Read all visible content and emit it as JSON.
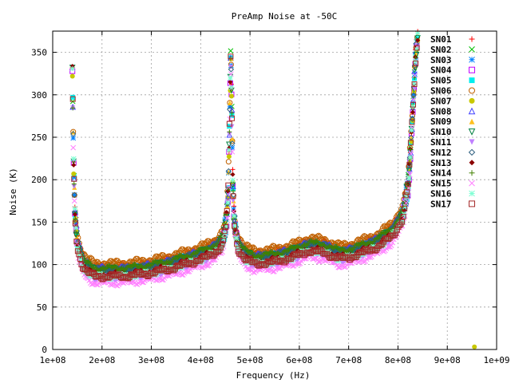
{
  "chart_data": {
    "type": "scatter",
    "title": "PreAmp Noise at -50C",
    "xlabel": "Frequency (Hz)",
    "ylabel": "Noise (K)",
    "xlim": [
      100000000,
      1000000000
    ],
    "ylim": [
      0,
      375
    ],
    "x_ticks": [
      {
        "value": 100000000,
        "label": "1e+08"
      },
      {
        "value": 200000000,
        "label": "2e+08"
      },
      {
        "value": 300000000,
        "label": "3e+08"
      },
      {
        "value": 400000000,
        "label": "4e+08"
      },
      {
        "value": 500000000,
        "label": "5e+08"
      },
      {
        "value": 600000000,
        "label": "6e+08"
      },
      {
        "value": 700000000,
        "label": "7e+08"
      },
      {
        "value": 800000000,
        "label": "8e+08"
      },
      {
        "value": 900000000,
        "label": "9e+08"
      },
      {
        "value": 1000000000,
        "label": "1e+09"
      }
    ],
    "y_ticks": [
      {
        "value": 0,
        "label": "0"
      },
      {
        "value": 50,
        "label": "50"
      },
      {
        "value": 100,
        "label": "100"
      },
      {
        "value": 150,
        "label": "150"
      },
      {
        "value": 200,
        "label": "200"
      },
      {
        "value": 250,
        "label": "250"
      },
      {
        "value": 300,
        "label": "300"
      },
      {
        "value": 350,
        "label": "350"
      }
    ],
    "grid": true,
    "legend_position": "top-right",
    "base_curve": [
      [
        140000000,
        330
      ],
      [
        142000000,
        230
      ],
      [
        145000000,
        160
      ],
      [
        150000000,
        125
      ],
      [
        160000000,
        105
      ],
      [
        170000000,
        97
      ],
      [
        185000000,
        92
      ],
      [
        200000000,
        92
      ],
      [
        230000000,
        92
      ],
      [
        260000000,
        93
      ],
      [
        300000000,
        96
      ],
      [
        340000000,
        101
      ],
      [
        380000000,
        108
      ],
      [
        410000000,
        114
      ],
      [
        430000000,
        120
      ],
      [
        445000000,
        130
      ],
      [
        452000000,
        150
      ],
      [
        456000000,
        190
      ],
      [
        459000000,
        280
      ],
      [
        461000000,
        350
      ],
      [
        463000000,
        290
      ],
      [
        465000000,
        200
      ],
      [
        468000000,
        150
      ],
      [
        475000000,
        125
      ],
      [
        490000000,
        112
      ],
      [
        510000000,
        107
      ],
      [
        540000000,
        108
      ],
      [
        580000000,
        113
      ],
      [
        620000000,
        122
      ],
      [
        650000000,
        120
      ],
      [
        680000000,
        113
      ],
      [
        700000000,
        114
      ],
      [
        730000000,
        120
      ],
      [
        760000000,
        127
      ],
      [
        790000000,
        140
      ],
      [
        810000000,
        160
      ],
      [
        820000000,
        190
      ],
      [
        825000000,
        230
      ],
      [
        830000000,
        280
      ],
      [
        835000000,
        340
      ],
      [
        840000000,
        370
      ]
    ],
    "series": [
      {
        "name": "SN01",
        "marker": "plus",
        "color": "#ff0000",
        "offset": 6
      },
      {
        "name": "SN02",
        "marker": "cross",
        "color": "#00c000",
        "offset": 2
      },
      {
        "name": "SN03",
        "marker": "star",
        "color": "#0080ff",
        "offset": 4
      },
      {
        "name": "SN04",
        "marker": "box",
        "color": "#c000ff",
        "offset": 0
      },
      {
        "name": "SN05",
        "marker": "fbox",
        "color": "#00eeee",
        "offset": -4
      },
      {
        "name": "SN06",
        "marker": "circle",
        "color": "#c06000",
        "offset": 10
      },
      {
        "name": "SN07",
        "marker": "fcircle",
        "color": "#c8c800",
        "offset": -2
      },
      {
        "name": "SN08",
        "marker": "triangle",
        "color": "#4040ff",
        "offset": 3
      },
      {
        "name": "SN09",
        "marker": "ftriangle",
        "color": "#ffc020",
        "offset": 0
      },
      {
        "name": "SN10",
        "marker": "itriangle",
        "color": "#008040",
        "offset": 1
      },
      {
        "name": "SN11",
        "marker": "fitriangle",
        "color": "#c080ff",
        "offset": -8
      },
      {
        "name": "SN12",
        "marker": "diamond",
        "color": "#306080",
        "offset": 2
      },
      {
        "name": "SN13",
        "marker": "fdiamond",
        "color": "#8b0000",
        "offset": -3
      },
      {
        "name": "SN14",
        "marker": "plus",
        "color": "#408000",
        "offset": 4
      },
      {
        "name": "SN15",
        "marker": "cross",
        "color": "#ff80ff",
        "offset": -14
      },
      {
        "name": "SN16",
        "marker": "star",
        "color": "#7fffd4",
        "offset": -6
      },
      {
        "name": "SN17",
        "marker": "box",
        "color": "#a52a2a",
        "offset": -6
      }
    ],
    "extra_points": [
      {
        "series": "SN07",
        "x": 955000000,
        "y": 3
      }
    ]
  }
}
